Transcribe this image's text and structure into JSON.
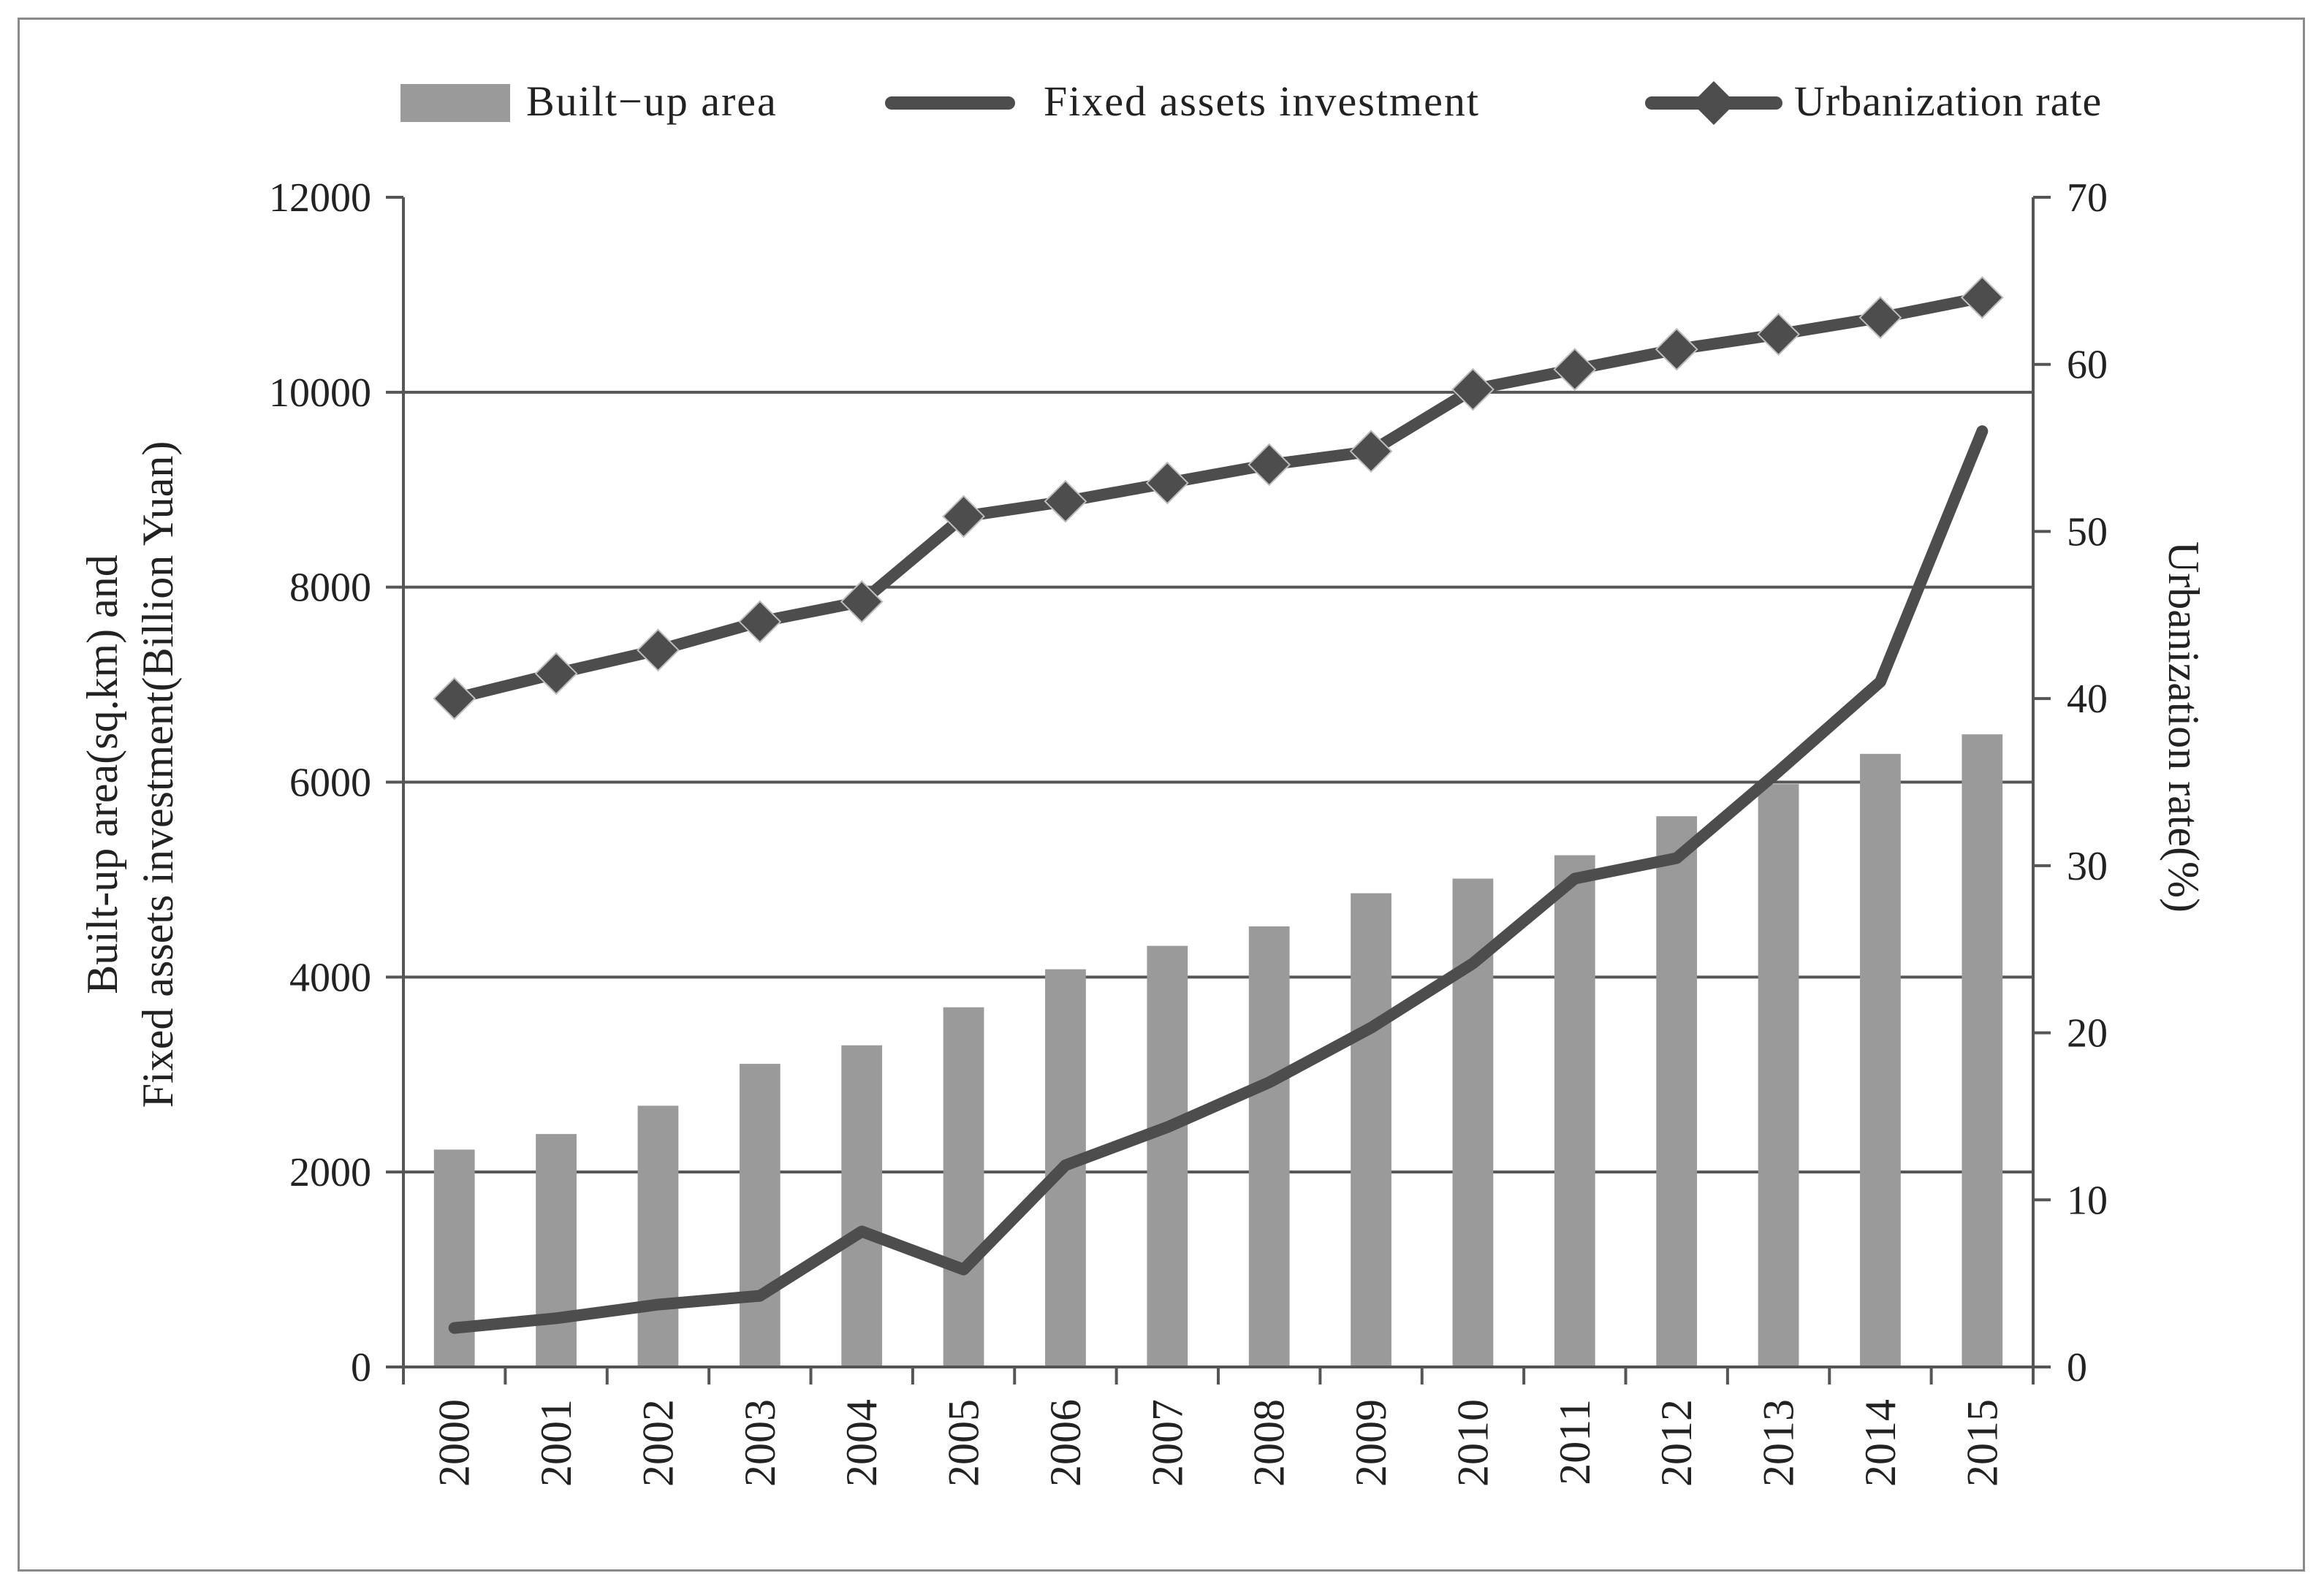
{
  "chart_data": {
    "type": "bar",
    "title": "",
    "categories": [
      "2000",
      "2001",
      "2002",
      "2003",
      "2004",
      "2005",
      "2006",
      "2007",
      "2008",
      "2009",
      "2010",
      "2011",
      "2012",
      "2013",
      "2014",
      "2015"
    ],
    "series": [
      {
        "name": "Built−up area",
        "type": "bar",
        "axis": "left",
        "color": "#9a9a9a",
        "values": [
          2230,
          2390,
          2680,
          3110,
          3300,
          3690,
          4080,
          4320,
          4520,
          4860,
          5010,
          5250,
          5650,
          5980,
          6290,
          6490
        ]
      },
      {
        "name": "Fixed assets investment",
        "type": "line",
        "axis": "left",
        "color": "#4d4d4d",
        "values": [
          400,
          500,
          640,
          730,
          1390,
          1000,
          2070,
          2460,
          2920,
          3480,
          4140,
          5010,
          5220,
          6110,
          7030,
          9600
        ]
      },
      {
        "name": "Urbanization rate",
        "type": "line-marker",
        "marker": "diamond",
        "axis": "right",
        "color": "#4d4d4d",
        "values": [
          40.0,
          41.5,
          42.9,
          44.6,
          45.8,
          50.9,
          51.8,
          52.9,
          54.0,
          54.8,
          58.5,
          59.7,
          60.9,
          61.8,
          62.8,
          64.0
        ]
      }
    ],
    "y_left": {
      "label_line1": "Built-up area(sq.km) and",
      "label_line2": "Fixed assets investment(Billion Yuan)",
      "ylim": [
        0,
        12000
      ],
      "ticks": [
        "0",
        "2000",
        "4000",
        "6000",
        "8000",
        "10000",
        "12000"
      ],
      "gridlines": [
        2000,
        4000,
        6000,
        8000,
        10000
      ]
    },
    "y_right": {
      "label": "Urbanization rate(%)",
      "ylim": [
        0,
        70
      ],
      "ticks": [
        "0",
        "10",
        "20",
        "30",
        "40",
        "50",
        "60",
        "70"
      ]
    },
    "legend": {
      "position": "top",
      "entries": [
        "Built−up area",
        "Fixed assets investment",
        "Urbanization rate"
      ]
    },
    "xlabel": ""
  }
}
